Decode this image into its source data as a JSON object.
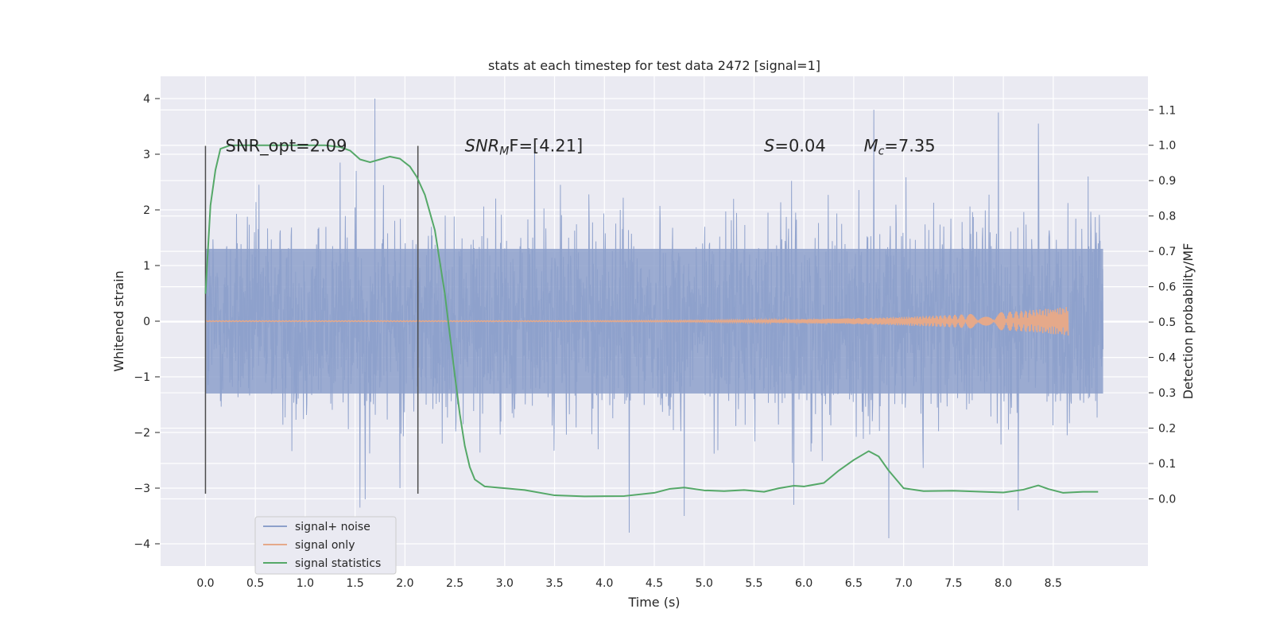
{
  "chart_data": {
    "type": "line",
    "title": "stats at each timestep for test data 2472 [signal=1]",
    "xlabel": "Time (s)",
    "ylabel": "Whitened strain",
    "y2label": "Detection probability/MF",
    "xlim": [
      -0.45,
      9.45
    ],
    "ylim": [
      -4.4,
      4.4
    ],
    "y2lim": [
      -0.19,
      1.195
    ],
    "xticks": [
      "0.0",
      "0.5",
      "1.0",
      "1.5",
      "2.0",
      "2.5",
      "3.0",
      "3.5",
      "4.0",
      "4.5",
      "5.0",
      "5.5",
      "6.0",
      "6.5",
      "7.0",
      "7.5",
      "8.0",
      "8.5"
    ],
    "yticks": [
      "4",
      "3",
      "2",
      "1",
      "0",
      "−1",
      "−2",
      "−3",
      "−4"
    ],
    "y2ticks": [
      "1.1",
      "1.0",
      "0.9",
      "0.8",
      "0.7",
      "0.6",
      "0.5",
      "0.4",
      "0.3",
      "0.2",
      "0.1",
      "0.0"
    ],
    "grid": true,
    "legend_position": "lower-left",
    "series": [
      {
        "name": "signal+ noise",
        "color": "#8da0cb",
        "x_range": [
          0.0,
          9.0
        ],
        "envelope": [
          1.3,
          -1.3
        ],
        "peaks": [
          {
            "x": 0.0,
            "y": -3.1
          },
          {
            "x": 0.0,
            "y": 2.1
          },
          {
            "x": 1.35,
            "y": 2.85
          },
          {
            "x": 1.55,
            "y": -3.35
          },
          {
            "x": 1.6,
            "y": -3.2
          },
          {
            "x": 1.7,
            "y": 4.0
          },
          {
            "x": 1.95,
            "y": -3.0
          },
          {
            "x": 3.3,
            "y": 3.2
          },
          {
            "x": 4.25,
            "y": -3.8
          },
          {
            "x": 4.8,
            "y": -3.5
          },
          {
            "x": 5.9,
            "y": -3.3
          },
          {
            "x": 6.7,
            "y": 3.8
          },
          {
            "x": 6.85,
            "y": -3.9
          },
          {
            "x": 7.95,
            "y": 3.75
          },
          {
            "x": 8.15,
            "y": -3.4
          },
          {
            "x": 8.35,
            "y": 3.55
          },
          {
            "x": 8.85,
            "y": 2.6
          }
        ]
      },
      {
        "name": "signal only",
        "color": "#e5a98a",
        "x_range": [
          0.0,
          8.65
        ],
        "chirp_end_amplitude": 0.25
      },
      {
        "name": "signal statistics",
        "color": "#55a868",
        "axis": "right",
        "x": [
          0.0,
          0.05,
          0.1,
          0.15,
          0.25,
          0.4,
          0.6,
          0.8,
          1.0,
          1.2,
          1.35,
          1.45,
          1.55,
          1.65,
          1.75,
          1.85,
          1.95,
          2.05,
          2.12,
          2.2,
          2.3,
          2.4,
          2.5,
          2.55,
          2.6,
          2.65,
          2.7,
          2.8,
          3.0,
          3.2,
          3.5,
          3.8,
          4.2,
          4.5,
          4.65,
          4.8,
          5.0,
          5.2,
          5.4,
          5.6,
          5.75,
          5.9,
          6.0,
          6.2,
          6.35,
          6.5,
          6.65,
          6.75,
          6.85,
          7.0,
          7.2,
          7.5,
          7.8,
          8.0,
          8.2,
          8.35,
          8.45,
          8.6,
          8.8,
          8.95
        ],
        "y": [
          0.58,
          0.83,
          0.93,
          0.99,
          1.0,
          1.0,
          1.0,
          1.0,
          1.0,
          1.0,
          0.995,
          0.985,
          0.96,
          0.952,
          0.96,
          0.968,
          0.962,
          0.94,
          0.91,
          0.86,
          0.76,
          0.58,
          0.35,
          0.24,
          0.15,
          0.09,
          0.055,
          0.035,
          0.03,
          0.025,
          0.01,
          0.007,
          0.008,
          0.017,
          0.028,
          0.032,
          0.024,
          0.022,
          0.025,
          0.02,
          0.03,
          0.037,
          0.035,
          0.045,
          0.08,
          0.11,
          0.135,
          0.12,
          0.08,
          0.03,
          0.022,
          0.023,
          0.02,
          0.018,
          0.026,
          0.038,
          0.028,
          0.017,
          0.02,
          0.02
        ]
      }
    ],
    "vlines": [
      {
        "x": 0.0,
        "y_top": 3.15,
        "y_bottom": -3.1
      },
      {
        "x": 2.13,
        "y_top": 3.15,
        "y_bottom": -3.1
      }
    ],
    "annotations": [
      {
        "key": "snr_opt",
        "x": 0.2,
        "y": 3.15,
        "parts": [
          {
            "t": "SNR_opt=2.09"
          }
        ]
      },
      {
        "key": "snr_mf",
        "x": 2.6,
        "y": 3.15,
        "parts": [
          {
            "t": "SNR",
            "i": true
          },
          {
            "t": "M",
            "i": true,
            "sub": true
          },
          {
            "t": "F=[4.21]"
          }
        ]
      },
      {
        "key": "s",
        "x": 5.6,
        "y": 3.15,
        "parts": [
          {
            "t": "S",
            "i": true
          },
          {
            "t": "=0.04"
          }
        ]
      },
      {
        "key": "mc",
        "x": 6.6,
        "y": 3.15,
        "parts": [
          {
            "t": "M",
            "i": true
          },
          {
            "t": "c",
            "i": true,
            "sub": true
          },
          {
            "t": "=7.35"
          }
        ]
      }
    ],
    "colors": {
      "plot_background": "#eaeaf2",
      "grid": "#ffffff",
      "text": "#262626",
      "vline": "#4c4c4c"
    }
  }
}
